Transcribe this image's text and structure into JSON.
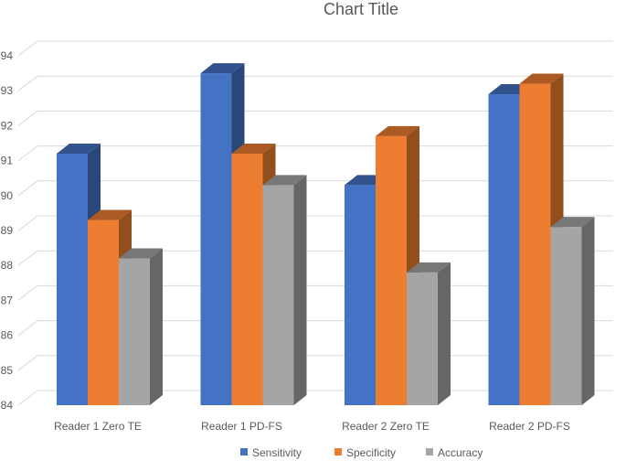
{
  "chart_data": {
    "type": "bar",
    "title": "Chart Title",
    "categories": [
      "Reader 1 Zero TE",
      "Reader 1 PD-FS",
      "Reader 2 Zero TE",
      "Reader 2 PD-FS"
    ],
    "series": [
      {
        "name": "Sensitivity",
        "values": [
          91.2,
          93.5,
          90.3,
          92.9
        ],
        "color": "#4472C4"
      },
      {
        "name": "Specificity",
        "values": [
          89.3,
          91.2,
          91.7,
          93.2
        ],
        "color": "#ED7D31"
      },
      {
        "name": "Accuracy",
        "values": [
          88.2,
          90.3,
          87.8,
          89.1
        ],
        "color": "#A5A5A5"
      }
    ],
    "ylim": [
      84,
      94
    ],
    "yticks": [
      "84",
      "85",
      "86",
      "87",
      "88",
      "89",
      "90",
      "91",
      "92",
      "93",
      "94"
    ],
    "grid": true,
    "legend": "bottom",
    "style": "3d-clustered-column"
  }
}
